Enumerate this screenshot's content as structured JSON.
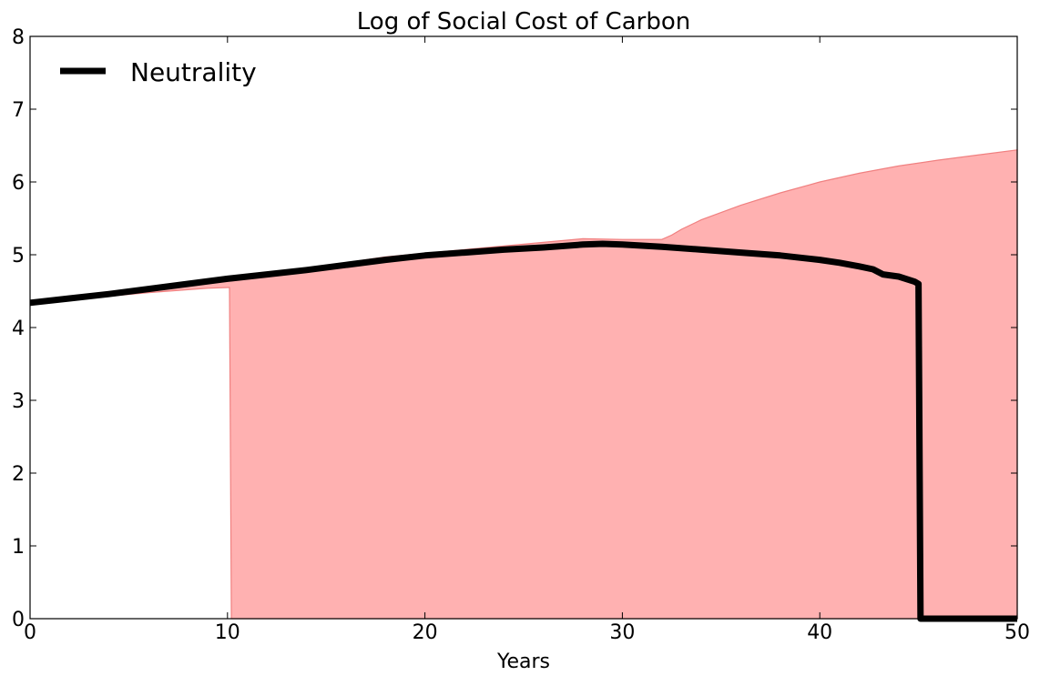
{
  "chart_data": {
    "type": "area",
    "title": "Log of Social Cost of Carbon",
    "xlabel": "Years",
    "ylabel": "",
    "xlim": [
      0,
      50
    ],
    "ylim": [
      0,
      8
    ],
    "xticks": [
      "0",
      "10",
      "20",
      "30",
      "40",
      "50"
    ],
    "yticks": [
      "0",
      "1",
      "2",
      "3",
      "4",
      "5",
      "6",
      "7",
      "8"
    ],
    "grid": false,
    "legend": {
      "position": "top-left",
      "entries": [
        "Neutrality"
      ]
    },
    "colors": {
      "line": "#000000",
      "band_fill": "#ffb1b1",
      "band_edge": "#f08080"
    },
    "series": [
      {
        "name": "Neutrality",
        "type": "line",
        "x": [
          0,
          2,
          4,
          6,
          8,
          10,
          12,
          14,
          16,
          18,
          20,
          22,
          24,
          26,
          28,
          29,
          30,
          32,
          34,
          36,
          38,
          40,
          41,
          42,
          42.7,
          43.2,
          44,
          44.8,
          45.0,
          45.1,
          46,
          50
        ],
        "y": [
          4.34,
          4.4,
          4.46,
          4.53,
          4.6,
          4.67,
          4.73,
          4.79,
          4.86,
          4.93,
          4.99,
          5.03,
          5.07,
          5.1,
          5.14,
          5.15,
          5.14,
          5.11,
          5.07,
          5.03,
          4.99,
          4.93,
          4.89,
          4.84,
          4.8,
          4.73,
          4.7,
          4.63,
          4.6,
          0.0,
          0.0,
          0.0
        ]
      }
    ],
    "band": {
      "x_upper": [
        0,
        2,
        4,
        6,
        8,
        10,
        12,
        14,
        16,
        18,
        20,
        22,
        24,
        26,
        28,
        30,
        32,
        32.5,
        33,
        34,
        36,
        38,
        40,
        42,
        44,
        46,
        48,
        50
      ],
      "upper": [
        4.34,
        4.4,
        4.46,
        4.53,
        4.6,
        4.68,
        4.75,
        4.82,
        4.89,
        4.97,
        5.02,
        5.07,
        5.12,
        5.17,
        5.22,
        5.21,
        5.21,
        5.27,
        5.35,
        5.48,
        5.68,
        5.85,
        6.0,
        6.12,
        6.22,
        6.3,
        6.37,
        6.44
      ],
      "x_lower": [
        0,
        2,
        4,
        6,
        8,
        9,
        10,
        10.1,
        10.2,
        50
      ],
      "lower": [
        4.34,
        4.39,
        4.43,
        4.48,
        4.52,
        4.54,
        4.55,
        4.55,
        0.0,
        0.0
      ]
    }
  }
}
